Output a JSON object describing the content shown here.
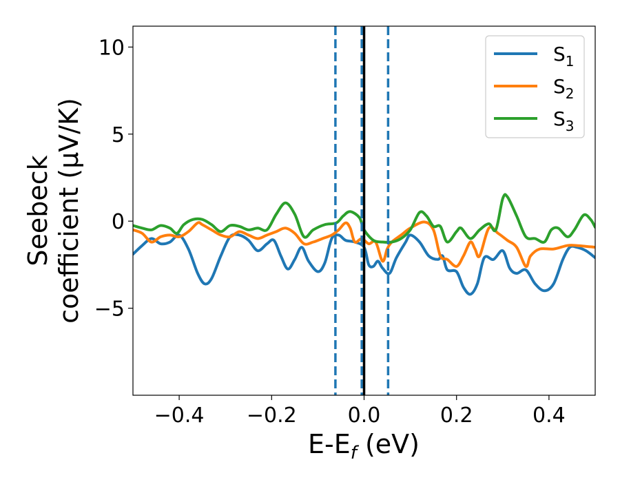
{
  "chart_data": {
    "type": "line",
    "xlabel": "E-E",
    "xlabel_sub": "f",
    "xlabel_unit": " (eV)",
    "ylabel_line1": "Seebeck",
    "ylabel_line2": "coefficient  (μV/K)",
    "xlim": [
      -0.5,
      0.5
    ],
    "ylim": [
      -10,
      11.2
    ],
    "x_ticks": [
      -0.4,
      -0.2,
      0.0,
      0.2,
      0.4
    ],
    "x_tick_labels": [
      "−0.4",
      "−0.2",
      "0.0",
      "0.2",
      "0.4"
    ],
    "y_ticks": [
      -5,
      0,
      5,
      10
    ],
    "y_tick_labels": [
      "−5",
      "0",
      "5",
      "10"
    ],
    "grid": false,
    "legend_position": "top-right",
    "vertical_lines": [
      {
        "x": -0.062,
        "style": "dashed",
        "color": "#1f77b4"
      },
      {
        "x": -0.005,
        "style": "dashed",
        "color": "#1f77b4"
      },
      {
        "x": 0.052,
        "style": "dashed",
        "color": "#1f77b4"
      },
      {
        "x": 0.0,
        "style": "solid",
        "color": "#000000"
      }
    ],
    "series": [
      {
        "name": "S",
        "name_sub": "1",
        "color": "#1f77b4",
        "points": [
          [
            -0.5,
            -1.9
          ],
          [
            -0.48,
            -1.4
          ],
          [
            -0.46,
            -1.0
          ],
          [
            -0.44,
            -1.3
          ],
          [
            -0.42,
            -1.2
          ],
          [
            -0.4,
            -0.8
          ],
          [
            -0.38,
            -1.6
          ],
          [
            -0.36,
            -3.0
          ],
          [
            -0.345,
            -3.6
          ],
          [
            -0.33,
            -3.3
          ],
          [
            -0.31,
            -2.0
          ],
          [
            -0.29,
            -0.9
          ],
          [
            -0.27,
            -0.8
          ],
          [
            -0.25,
            -1.1
          ],
          [
            -0.23,
            -1.7
          ],
          [
            -0.21,
            -1.3
          ],
          [
            -0.195,
            -1.1
          ],
          [
            -0.18,
            -2.0
          ],
          [
            -0.165,
            -2.75
          ],
          [
            -0.15,
            -2.2
          ],
          [
            -0.135,
            -1.5
          ],
          [
            -0.12,
            -2.3
          ],
          [
            -0.1,
            -2.9
          ],
          [
            -0.085,
            -2.4
          ],
          [
            -0.07,
            -1.0
          ],
          [
            -0.055,
            -0.8
          ],
          [
            -0.04,
            -1.1
          ],
          [
            -0.02,
            -1.2
          ],
          [
            0.0,
            -1.5
          ],
          [
            0.01,
            -2.5
          ],
          [
            0.02,
            -2.6
          ],
          [
            0.03,
            -2.3
          ],
          [
            0.04,
            -2.7
          ],
          [
            0.055,
            -3.0
          ],
          [
            0.07,
            -2.1
          ],
          [
            0.09,
            -1.2
          ],
          [
            0.1,
            -0.8
          ],
          [
            0.12,
            -1.2
          ],
          [
            0.14,
            -2.0
          ],
          [
            0.16,
            -2.2
          ],
          [
            0.17,
            -2.0
          ],
          [
            0.18,
            -2.8
          ],
          [
            0.2,
            -2.9
          ],
          [
            0.215,
            -3.8
          ],
          [
            0.23,
            -4.2
          ],
          [
            0.245,
            -3.6
          ],
          [
            0.26,
            -2.1
          ],
          [
            0.28,
            -2.2
          ],
          [
            0.3,
            -1.7
          ],
          [
            0.315,
            -2.7
          ],
          [
            0.33,
            -3.0
          ],
          [
            0.35,
            -2.8
          ],
          [
            0.37,
            -3.6
          ],
          [
            0.39,
            -4.0
          ],
          [
            0.41,
            -3.6
          ],
          [
            0.43,
            -2.2
          ],
          [
            0.445,
            -1.5
          ],
          [
            0.46,
            -1.5
          ],
          [
            0.48,
            -1.7
          ],
          [
            0.5,
            -2.1
          ]
        ]
      },
      {
        "name": "S",
        "name_sub": "2",
        "color": "#ff7f0e",
        "points": [
          [
            -0.5,
            -0.5
          ],
          [
            -0.48,
            -0.7
          ],
          [
            -0.46,
            -1.2
          ],
          [
            -0.44,
            -0.9
          ],
          [
            -0.42,
            -0.8
          ],
          [
            -0.4,
            -0.9
          ],
          [
            -0.38,
            -0.6
          ],
          [
            -0.36,
            -0.1
          ],
          [
            -0.35,
            -0.2
          ],
          [
            -0.33,
            -0.5
          ],
          [
            -0.31,
            -0.8
          ],
          [
            -0.29,
            -0.9
          ],
          [
            -0.27,
            -0.6
          ],
          [
            -0.25,
            -0.8
          ],
          [
            -0.23,
            -1.0
          ],
          [
            -0.21,
            -0.8
          ],
          [
            -0.19,
            -0.6
          ],
          [
            -0.17,
            -0.4
          ],
          [
            -0.15,
            -0.7
          ],
          [
            -0.13,
            -1.3
          ],
          [
            -0.11,
            -1.2
          ],
          [
            -0.09,
            -1.0
          ],
          [
            -0.07,
            -0.8
          ],
          [
            -0.055,
            -0.5
          ],
          [
            -0.04,
            -0.1
          ],
          [
            -0.03,
            -0.4
          ],
          [
            -0.02,
            -1.2
          ],
          [
            -0.005,
            -1.0
          ],
          [
            0.01,
            -1.3
          ],
          [
            0.025,
            -1.2
          ],
          [
            0.04,
            -2.3
          ],
          [
            0.05,
            -1.6
          ],
          [
            0.06,
            -1.2
          ],
          [
            0.08,
            -0.8
          ],
          [
            0.1,
            -0.4
          ],
          [
            0.13,
            -0.05
          ],
          [
            0.15,
            -0.5
          ],
          [
            0.165,
            -2.0
          ],
          [
            0.18,
            -2.2
          ],
          [
            0.2,
            -2.6
          ],
          [
            0.215,
            -2.0
          ],
          [
            0.23,
            -1.2
          ],
          [
            0.24,
            -1.6
          ],
          [
            0.25,
            -2.0
          ],
          [
            0.27,
            -0.4
          ],
          [
            0.29,
            -0.7
          ],
          [
            0.31,
            -1.1
          ],
          [
            0.33,
            -1.5
          ],
          [
            0.35,
            -2.6
          ],
          [
            0.36,
            -2.0
          ],
          [
            0.38,
            -1.6
          ],
          [
            0.41,
            -1.6
          ],
          [
            0.44,
            -1.4
          ],
          [
            0.46,
            -1.4
          ],
          [
            0.5,
            -1.5
          ]
        ]
      },
      {
        "name": "S",
        "name_sub": "3",
        "color": "#2ca02c",
        "points": [
          [
            -0.5,
            -0.25
          ],
          [
            -0.48,
            -0.4
          ],
          [
            -0.46,
            -0.5
          ],
          [
            -0.44,
            -0.25
          ],
          [
            -0.42,
            -0.4
          ],
          [
            -0.405,
            -0.7
          ],
          [
            -0.39,
            -0.2
          ],
          [
            -0.37,
            0.1
          ],
          [
            -0.35,
            0.1
          ],
          [
            -0.33,
            -0.2
          ],
          [
            -0.31,
            -0.6
          ],
          [
            -0.29,
            -0.25
          ],
          [
            -0.27,
            -0.3
          ],
          [
            -0.25,
            -0.5
          ],
          [
            -0.23,
            -0.4
          ],
          [
            -0.21,
            -0.5
          ],
          [
            -0.19,
            0.4
          ],
          [
            -0.17,
            1.05
          ],
          [
            -0.15,
            0.4
          ],
          [
            -0.13,
            -0.9
          ],
          [
            -0.11,
            -0.5
          ],
          [
            -0.085,
            -0.2
          ],
          [
            -0.06,
            -0.1
          ],
          [
            -0.045,
            0.3
          ],
          [
            -0.03,
            0.55
          ],
          [
            -0.01,
            0.2
          ],
          [
            0.0,
            -0.5
          ],
          [
            0.02,
            -1.1
          ],
          [
            0.04,
            -1.2
          ],
          [
            0.06,
            -1.2
          ],
          [
            0.08,
            -1.0
          ],
          [
            0.1,
            -0.5
          ],
          [
            0.12,
            0.5
          ],
          [
            0.135,
            0.3
          ],
          [
            0.15,
            -0.3
          ],
          [
            0.165,
            -0.3
          ],
          [
            0.18,
            -1.2
          ],
          [
            0.2,
            -0.6
          ],
          [
            0.21,
            -0.4
          ],
          [
            0.23,
            -1.0
          ],
          [
            0.25,
            -0.5
          ],
          [
            0.27,
            -0.15
          ],
          [
            0.285,
            -0.5
          ],
          [
            0.3,
            1.3
          ],
          [
            0.31,
            1.4
          ],
          [
            0.33,
            0.3
          ],
          [
            0.35,
            -0.9
          ],
          [
            0.37,
            -1.0
          ],
          [
            0.39,
            -1.2
          ],
          [
            0.405,
            -0.5
          ],
          [
            0.42,
            -0.4
          ],
          [
            0.44,
            -0.9
          ],
          [
            0.455,
            -0.5
          ],
          [
            0.475,
            0.35
          ],
          [
            0.49,
            0.1
          ],
          [
            0.5,
            -0.35
          ]
        ]
      }
    ]
  }
}
